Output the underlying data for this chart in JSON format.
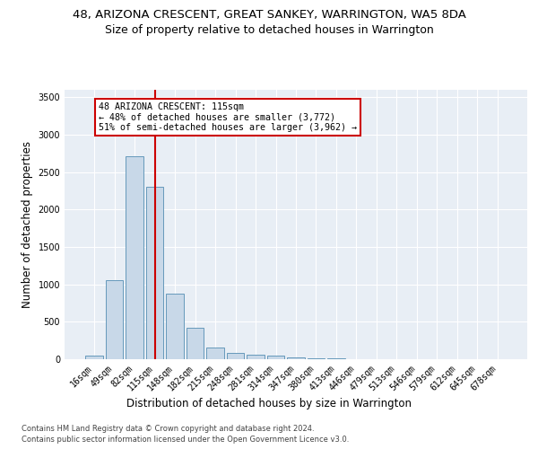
{
  "title": "48, ARIZONA CRESCENT, GREAT SANKEY, WARRINGTON, WA5 8DA",
  "subtitle": "Size of property relative to detached houses in Warrington",
  "xlabel": "Distribution of detached houses by size in Warrington",
  "ylabel": "Number of detached properties",
  "categories": [
    "16sqm",
    "49sqm",
    "82sqm",
    "115sqm",
    "148sqm",
    "182sqm",
    "215sqm",
    "248sqm",
    "281sqm",
    "314sqm",
    "347sqm",
    "380sqm",
    "413sqm",
    "446sqm",
    "479sqm",
    "513sqm",
    "546sqm",
    "579sqm",
    "612sqm",
    "645sqm",
    "678sqm"
  ],
  "values": [
    50,
    1060,
    2710,
    2300,
    880,
    420,
    160,
    90,
    60,
    50,
    30,
    15,
    10,
    5,
    3,
    2,
    1,
    1,
    0,
    0,
    0
  ],
  "bar_color": "#c8d8e8",
  "bar_edge_color": "#6699bb",
  "highlight_bar_index": 3,
  "highlight_color": "#cc0000",
  "ylim": [
    0,
    3600
  ],
  "yticks": [
    0,
    500,
    1000,
    1500,
    2000,
    2500,
    3000,
    3500
  ],
  "annotation_text": "48 ARIZONA CRESCENT: 115sqm\n← 48% of detached houses are smaller (3,772)\n51% of semi-detached houses are larger (3,962) →",
  "annotation_box_color": "#ffffff",
  "annotation_box_edge_color": "#cc0000",
  "footer_line1": "Contains HM Land Registry data © Crown copyright and database right 2024.",
  "footer_line2": "Contains public sector information licensed under the Open Government Licence v3.0.",
  "bg_color": "#e8eef5",
  "title_fontsize": 9.5,
  "subtitle_fontsize": 9,
  "axis_label_fontsize": 8.5,
  "tick_fontsize": 7,
  "footer_fontsize": 6
}
